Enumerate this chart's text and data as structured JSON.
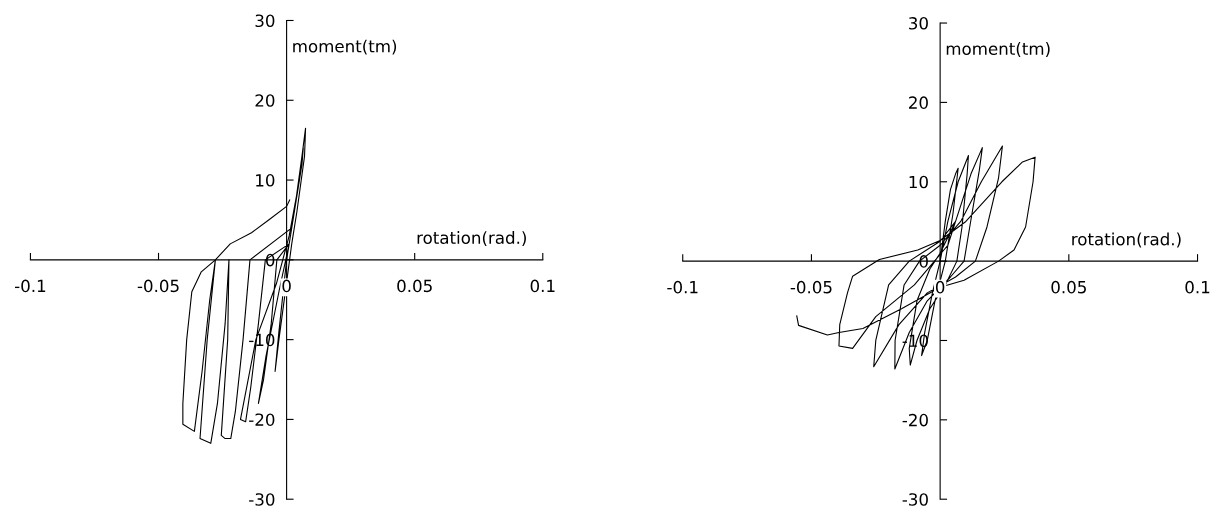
{
  "chart_data": [
    {
      "type": "line",
      "xlabel": "rotation(rad.)",
      "ylabel": "moment(tm)",
      "xlim": [
        -0.1,
        0.1
      ],
      "ylim": [
        -30,
        30
      ],
      "xticks": [
        -0.1,
        -0.05,
        0,
        0.05,
        0.1
      ],
      "yticks": [
        -30,
        -20,
        -10,
        0,
        10,
        20,
        30
      ],
      "grid": false,
      "marker": "none",
      "line_style": "solid",
      "series": [
        {
          "color": "#000000",
          "x": [
            0,
            0.003,
            0.006,
            0.0074,
            0.007,
            0.004,
            0.002,
            -0.003,
            -0.0045,
            -0.003,
            0,
            0.003,
            0.006,
            0.0065,
            0.004,
            0.001,
            -0.0038,
            -0.006,
            -0.009,
            -0.011,
            -0.008,
            -0.003,
            0.001,
            0.004,
            0.006,
            0.004,
            0.001,
            -0.0083,
            -0.011,
            -0.014,
            -0.016,
            -0.018,
            -0.012,
            -0.004,
            0.001,
            0.005,
            0.002,
            -0.0143,
            -0.017,
            -0.02,
            -0.0218,
            -0.024,
            -0.0255,
            -0.023,
            -0.0225,
            -0.024,
            -0.027,
            -0.0296,
            -0.0338,
            -0.031,
            -0.0278,
            -0.03,
            -0.033,
            -0.036,
            -0.0405,
            -0.0405,
            -0.039,
            -0.037,
            -0.0333,
            -0.0278,
            -0.022,
            -0.0137,
            -0.007,
            0,
            0.0012
          ],
          "values": [
            0,
            6,
            13,
            16.5,
            13,
            6,
            2,
            -10,
            -14,
            -9,
            0,
            6,
            12,
            14,
            8,
            2,
            0,
            -8,
            -15,
            -18,
            -12,
            -4,
            2,
            8,
            12,
            8,
            2,
            0,
            -8,
            -16,
            -20.3,
            -20,
            -10,
            -3,
            3,
            10,
            4,
            0,
            -10,
            -19,
            -22.4,
            -22.4,
            -22,
            -10,
            0,
            -8,
            -18,
            -23,
            -22.4,
            -10,
            0,
            -5,
            -14,
            -21.5,
            -20.6,
            -18,
            -10,
            -4,
            -1.5,
            0,
            2,
            3.4,
            5,
            6.7,
            7.5
          ]
        }
      ]
    },
    {
      "type": "line",
      "xlabel": "rotation(rad.)",
      "ylabel": "moment(tm)",
      "xlim": [
        -0.1,
        0.1
      ],
      "ylim": [
        -30,
        30
      ],
      "xticks": [
        -0.1,
        -0.05,
        0,
        0.05,
        0.1
      ],
      "yticks": [
        -30,
        -20,
        -10,
        0,
        10,
        20,
        30
      ],
      "grid": false,
      "marker": "none",
      "line_style": "solid",
      "series": [
        {
          "color": "#000000",
          "x": [
            0,
            0.002,
            0.004,
            0.006,
            0.007,
            0.005,
            0.002,
            -0.002,
            -0.005,
            -0.0072,
            -0.006,
            -0.003,
            0,
            0.003,
            0.007,
            0.011,
            0.0105,
            0.0085,
            0.0065,
            0.002,
            -0.004,
            -0.009,
            -0.0116,
            -0.012,
            -0.009,
            -0.004,
            0,
            0.006,
            0.012,
            0.0164,
            0.0152,
            0.0115,
            0.0093,
            0.004,
            -0.005,
            -0.012,
            -0.0176,
            -0.0175,
            -0.014,
            -0.008,
            0,
            0.008,
            0.016,
            0.0242,
            0.0227,
            0.0182,
            0.0137,
            0.006,
            -0.005,
            -0.016,
            -0.0258,
            -0.025,
            -0.02,
            -0.012,
            0,
            0.006,
            0.003,
            -0.01,
            -0.025,
            -0.034,
            -0.0393,
            -0.039,
            -0.036,
            -0.034,
            -0.0236,
            -0.0087,
            0,
            0.01,
            0.024,
            0.032,
            0.0369,
            0.0361,
            0.0332,
            0.0287,
            0.0227,
            0.0093,
            0,
            -0.015,
            -0.03,
            -0.0393,
            -0.0438,
            -0.055,
            -0.0557
          ],
          "values": [
            0,
            5,
            9,
            11,
            11.7,
            6,
            0,
            -5,
            -10,
            -11.9,
            -9,
            -4,
            0,
            5,
            10,
            13.3,
            11,
            4.3,
            0,
            -3,
            -6,
            -10,
            -13.1,
            -11,
            -5,
            -1,
            1,
            5,
            11,
            14.3,
            11.4,
            4.3,
            0,
            -2,
            -5,
            -9,
            -13.6,
            -10,
            -3,
            0,
            2,
            5,
            10,
            14.5,
            10.5,
            4.3,
            0,
            -2,
            -4,
            -8,
            -13.3,
            -10,
            -3,
            0,
            2.5,
            5,
            2,
            -3,
            -7,
            -11,
            -10.7,
            -8,
            -4,
            -1.9,
            0.2,
            1.4,
            2.6,
            5,
            10,
            12.5,
            13.1,
            10,
            4.3,
            1.4,
            0,
            -2.4,
            -3.3,
            -6,
            -8.5,
            -9,
            -9.3,
            -8.1,
            -6.9
          ]
        }
      ]
    }
  ]
}
